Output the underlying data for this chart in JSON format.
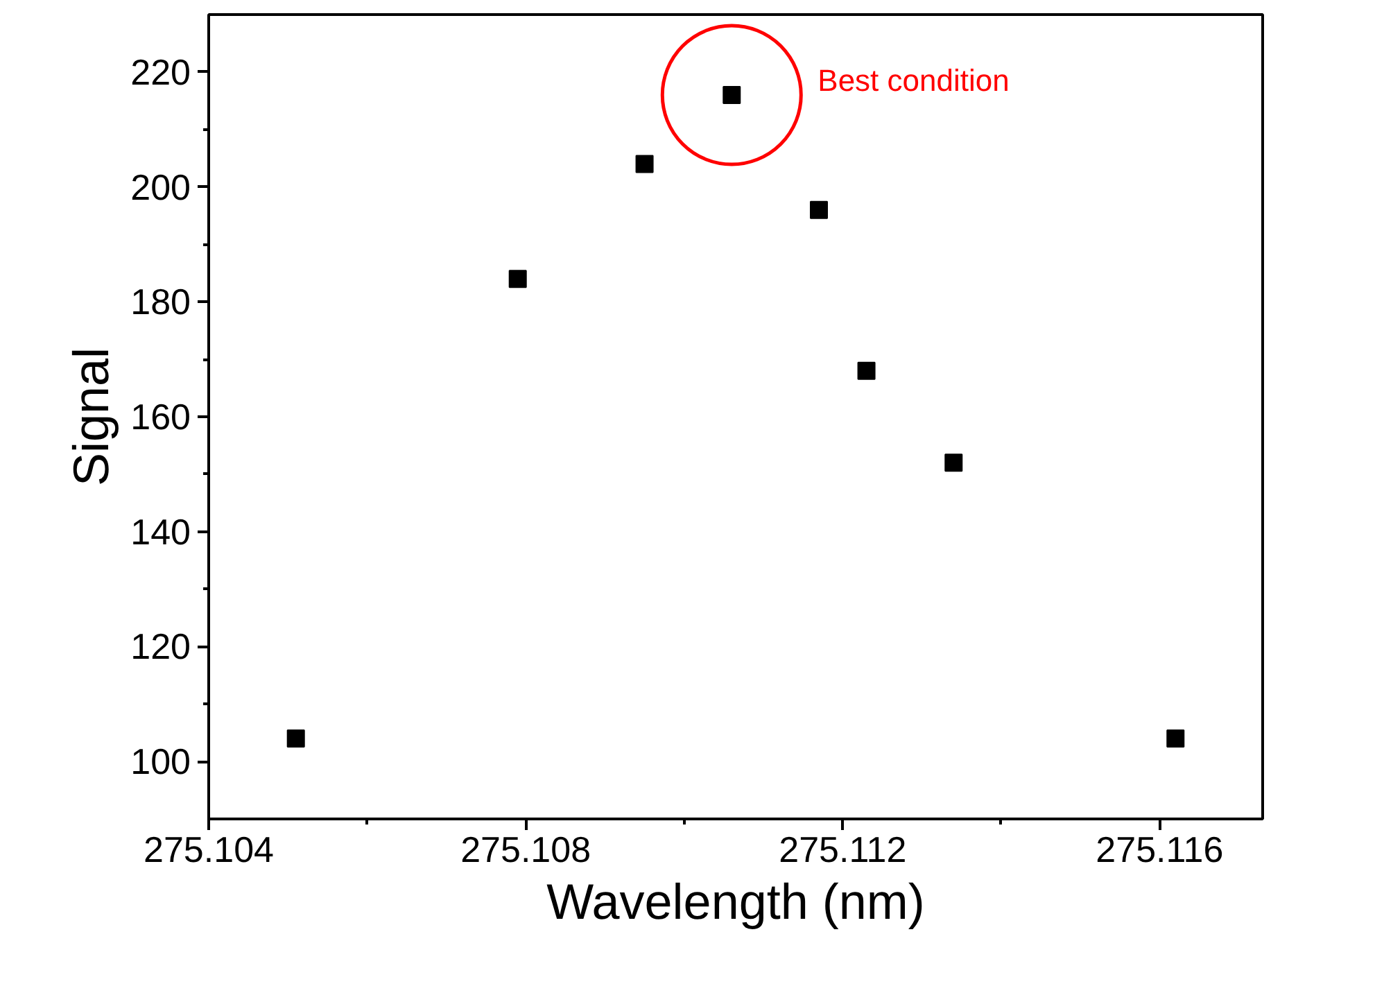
{
  "chart_data": {
    "type": "scatter",
    "xlabel": "Wavelength (nm)",
    "ylabel": "Signal",
    "x": [
      275.1051,
      275.1079,
      275.1095,
      275.1106,
      275.1117,
      275.1123,
      275.1134,
      275.1162
    ],
    "series": [
      {
        "color": "#000000",
        "values": [
          104,
          184,
          204,
          216,
          196,
          168,
          152,
          104
        ]
      }
    ],
    "xlim": [
      275.104,
      275.1173
    ],
    "ylim": [
      90,
      230
    ],
    "xticks": [
      275.104,
      275.108,
      275.112,
      275.116
    ],
    "yticks": [
      100,
      120,
      140,
      160,
      180,
      200,
      220
    ],
    "marker": "square",
    "grid": false,
    "annotations": [
      {
        "text": "Best condition",
        "x": 275.1106,
        "y": 216
      }
    ]
  }
}
